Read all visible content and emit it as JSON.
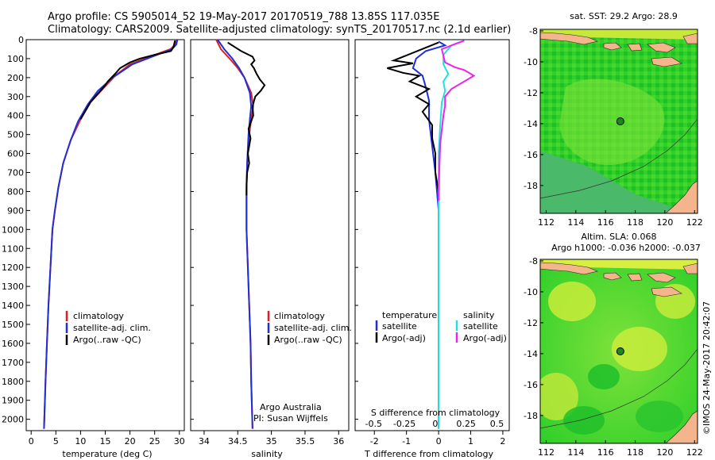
{
  "header": {
    "line1": "Argo profile: CS 5905014_52 19-May-2017 20170519_788 13.85S 117.035E",
    "line2": "Climatology: CARS2009. Satellite-adjusted climatology: synTS_20170517.nc (2.1d earlier)"
  },
  "colors": {
    "climatology": "#e02020",
    "satellite": "#1f2fd8",
    "argo": "#000000",
    "sal_satellite": "#22e0e0",
    "sal_argo": "#ee22ee",
    "land": "#f4b48c"
  },
  "watermark": "©IMOS 24-May-2017 20:42:07",
  "chart_data": [
    {
      "type": "line",
      "id": "temperature",
      "xlabel": "temperature (deg C)",
      "xlim": [
        -1,
        31
      ],
      "ylim": [
        2060,
        0
      ],
      "xticks": [
        0,
        5,
        10,
        15,
        20,
        25,
        30
      ],
      "yticks": [
        0,
        100,
        200,
        300,
        400,
        500,
        600,
        700,
        800,
        900,
        1000,
        1100,
        1200,
        1300,
        1400,
        1500,
        1600,
        1700,
        1800,
        1900,
        2000
      ],
      "legend": [
        "climatology",
        "satellite-adj. clim.",
        "Argo(..raw -QC)"
      ],
      "series": [
        {
          "name": "climatology",
          "color": "#e02020",
          "points": [
            [
              29.4,
              0
            ],
            [
              29.2,
              25
            ],
            [
              28.2,
              50
            ],
            [
              24,
              90
            ],
            [
              20,
              130
            ],
            [
              17,
              190
            ],
            [
              14.5,
              260
            ],
            [
              12,
              330
            ],
            [
              10,
              420
            ],
            [
              8,
              530
            ],
            [
              6.5,
              650
            ],
            [
              5.5,
              780
            ],
            [
              4.8,
              900
            ],
            [
              4.3,
              1000
            ],
            [
              3.9,
              1200
            ],
            [
              3.5,
              1400
            ],
            [
              3.2,
              1600
            ],
            [
              2.9,
              1800
            ],
            [
              2.6,
              2050
            ]
          ]
        },
        {
          "name": "satellite-adj. clim.",
          "color": "#1f2fd8",
          "points": [
            [
              29.6,
              0
            ],
            [
              29.4,
              25
            ],
            [
              28.5,
              50
            ],
            [
              24.5,
              90
            ],
            [
              20.5,
              130
            ],
            [
              16.5,
              200
            ],
            [
              13.5,
              270
            ],
            [
              11.5,
              340
            ],
            [
              9.5,
              430
            ],
            [
              8,
              530
            ],
            [
              6.5,
              650
            ],
            [
              5.5,
              780
            ],
            [
              4.8,
              900
            ],
            [
              4.3,
              1000
            ],
            [
              3.9,
              1200
            ],
            [
              3.5,
              1400
            ],
            [
              3.2,
              1600
            ],
            [
              2.9,
              1800
            ],
            [
              2.6,
              2050
            ]
          ]
        },
        {
          "name": "Argo(..raw -QC)",
          "color": "#000000",
          "points": [
            [
              29.1,
              5
            ],
            [
              28.8,
              40
            ],
            [
              28.3,
              60
            ],
            [
              25,
              80
            ],
            [
              22,
              100
            ],
            [
              20,
              120
            ],
            [
              18,
              150
            ],
            [
              17,
              180
            ],
            [
              15.5,
              220
            ],
            [
              15,
              240
            ],
            [
              14,
              270
            ],
            [
              12,
              330
            ],
            [
              10,
              420
            ]
          ]
        }
      ]
    },
    {
      "type": "line",
      "id": "salinity",
      "xlabel": "salinity",
      "xlim": [
        33.8,
        36.15
      ],
      "ylim": [
        2060,
        0
      ],
      "xticks": [
        34,
        34.5,
        35,
        35.5,
        36
      ],
      "legend": [
        "climatology",
        "satellite-adj. clim.",
        "Argo(..raw -QC)"
      ],
      "annotations": [
        "Argo Australia",
        "PI: Susan Wijffels"
      ],
      "series": [
        {
          "name": "climatology",
          "color": "#e02020",
          "points": [
            [
              34.18,
              0
            ],
            [
              34.25,
              50
            ],
            [
              34.38,
              100
            ],
            [
              34.5,
              150
            ],
            [
              34.6,
              200
            ],
            [
              34.7,
              280
            ],
            [
              34.73,
              350
            ],
            [
              34.7,
              420
            ],
            [
              34.67,
              500
            ],
            [
              34.64,
              650
            ],
            [
              34.63,
              800
            ],
            [
              34.63,
              1000
            ],
            [
              34.65,
              1200
            ],
            [
              34.67,
              1400
            ],
            [
              34.69,
              1600
            ],
            [
              34.7,
              1800
            ],
            [
              34.72,
              2050
            ]
          ]
        },
        {
          "name": "satellite-adj. clim.",
          "color": "#1f2fd8",
          "points": [
            [
              34.2,
              0
            ],
            [
              34.3,
              50
            ],
            [
              34.42,
              100
            ],
            [
              34.52,
              150
            ],
            [
              34.6,
              200
            ],
            [
              34.68,
              280
            ],
            [
              34.7,
              350
            ],
            [
              34.68,
              420
            ],
            [
              34.66,
              500
            ],
            [
              34.64,
              650
            ],
            [
              34.63,
              800
            ],
            [
              34.63,
              1000
            ],
            [
              34.65,
              1200
            ],
            [
              34.67,
              1400
            ],
            [
              34.69,
              1600
            ],
            [
              34.7,
              1800
            ],
            [
              34.72,
              2050
            ]
          ]
        },
        {
          "name": "Argo(..raw -QC)",
          "color": "#000000",
          "points": [
            [
              34.35,
              15
            ],
            [
              34.55,
              60
            ],
            [
              34.72,
              90
            ],
            [
              34.75,
              110
            ],
            [
              34.7,
              130
            ],
            [
              34.74,
              150
            ],
            [
              34.78,
              180
            ],
            [
              34.83,
              210
            ],
            [
              34.9,
              240
            ],
            [
              34.84,
              270
            ],
            [
              34.76,
              300
            ],
            [
              34.72,
              350
            ],
            [
              34.73,
              400
            ],
            [
              34.7,
              430
            ],
            [
              34.66,
              470
            ],
            [
              34.69,
              520
            ],
            [
              34.67,
              560
            ],
            [
              34.65,
              600
            ],
            [
              34.67,
              650
            ],
            [
              34.64,
              700
            ],
            [
              34.63,
              760
            ],
            [
              34.63,
              820
            ]
          ]
        }
      ]
    },
    {
      "type": "line",
      "id": "difference",
      "xlabel": "T difference from climatology",
      "xlabel2": "S difference from climatology",
      "xlim": [
        -2.6,
        2.2
      ],
      "ylim": [
        2060,
        0
      ],
      "xticks": [
        -2,
        -1,
        0,
        1,
        2
      ],
      "xticks_top": [
        -0.5,
        -0.25,
        0,
        0.25,
        0.5
      ],
      "legend": [
        "temperature",
        "satellite",
        "Argo(-adj)",
        "salinity",
        "satellite",
        "Argo(-adj)"
      ],
      "series": [
        {
          "name": "temperature satellite",
          "color": "#1f2fd8",
          "points": [
            [
              0,
              10
            ],
            [
              0.2,
              30
            ],
            [
              -0.4,
              60
            ],
            [
              -0.7,
              100
            ],
            [
              -0.8,
              150
            ],
            [
              -0.5,
              190
            ],
            [
              -0.4,
              250
            ],
            [
              -0.3,
              320
            ],
            [
              -0.3,
              420
            ],
            [
              -0.2,
              560
            ],
            [
              -0.1,
              700
            ],
            [
              0,
              900
            ],
            [
              0,
              1200
            ],
            [
              0,
              1500
            ],
            [
              0,
              1800
            ],
            [
              0,
              2050
            ]
          ]
        },
        {
          "name": "temperature Argo(-adj)",
          "color": "#000000",
          "points": [
            [
              0,
              15
            ],
            [
              -1.4,
              110
            ],
            [
              -0.8,
              125
            ],
            [
              -1.6,
              150
            ],
            [
              -1.1,
              175
            ],
            [
              -0.6,
              190
            ],
            [
              -0.9,
              220
            ],
            [
              -0.3,
              260
            ],
            [
              -0.7,
              300
            ],
            [
              -0.3,
              340
            ],
            [
              -0.5,
              380
            ],
            [
              -0.2,
              450
            ],
            [
              -0.2,
              520
            ],
            [
              -0.1,
              600
            ],
            [
              -0.1,
              700
            ],
            [
              0,
              800
            ]
          ]
        },
        {
          "name": "salinity satellite",
          "color": "#22e0e0",
          "points": [
            [
              0.7,
              10
            ],
            [
              0.4,
              30
            ],
            [
              0.15,
              80
            ],
            [
              0.15,
              130
            ],
            [
              0.3,
              180
            ],
            [
              0.15,
              220
            ],
            [
              0.2,
              270
            ],
            [
              0.1,
              330
            ],
            [
              0.05,
              450
            ],
            [
              0,
              600
            ],
            [
              0,
              800
            ],
            [
              0,
              1200
            ],
            [
              0,
              1600
            ],
            [
              0,
              2050
            ]
          ]
        },
        {
          "name": "salinity Argo(-adj)",
          "color": "#ee22ee",
          "points": [
            [
              0.8,
              5
            ],
            [
              0.1,
              50
            ],
            [
              0.2,
              120
            ],
            [
              0.5,
              145
            ],
            [
              0.8,
              160
            ],
            [
              1.1,
              190
            ],
            [
              0.8,
              220
            ],
            [
              0.4,
              260
            ],
            [
              0.2,
              300
            ],
            [
              0.2,
              350
            ],
            [
              0.15,
              400
            ],
            [
              0.05,
              550
            ],
            [
              0.02,
              700
            ],
            [
              0,
              850
            ]
          ]
        }
      ]
    },
    {
      "type": "heatmap",
      "id": "sst-map",
      "title": "sat. SST: 29.2 Argo: 28.9",
      "xlim": [
        111.6,
        122.2
      ],
      "ylim": [
        -19.8,
        -7.9
      ],
      "xticks": [
        112,
        114,
        116,
        118,
        120,
        122
      ],
      "yticks": [
        -8,
        -10,
        -12,
        -14,
        -16,
        -18
      ],
      "marker": {
        "lon": 117.0,
        "lat": -13.85
      }
    },
    {
      "type": "heatmap",
      "id": "sla-map",
      "title": "Altim. SLA: 0.068",
      "subtitle": "Argo h1000: -0.036 h2000: -0.037",
      "xlim": [
        111.6,
        122.2
      ],
      "ylim": [
        -19.8,
        -7.9
      ],
      "xticks": [
        112,
        114,
        116,
        118,
        120,
        122
      ],
      "yticks": [
        -8,
        -10,
        -12,
        -14,
        -16,
        -18
      ],
      "marker": {
        "lon": 117.0,
        "lat": -13.85
      }
    }
  ]
}
